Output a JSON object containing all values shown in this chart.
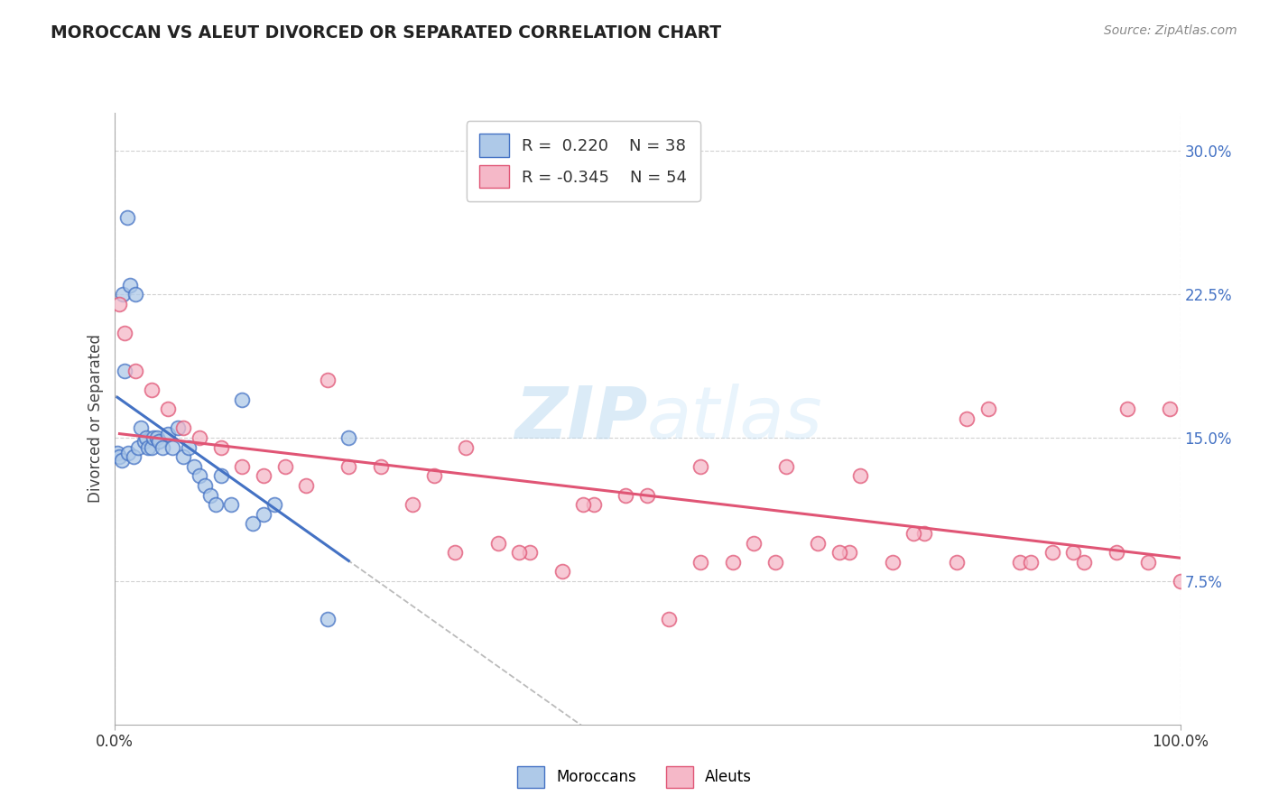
{
  "title": "MOROCCAN VS ALEUT DIVORCED OR SEPARATED CORRELATION CHART",
  "source": "Source: ZipAtlas.com",
  "ylabel": "Divorced or Separated",
  "xlim": [
    0,
    100
  ],
  "ylim": [
    0,
    32
  ],
  "ytick_vals": [
    7.5,
    15.0,
    22.5,
    30.0
  ],
  "ytick_labels": [
    "7.5%",
    "15.0%",
    "22.5%",
    "30.0%"
  ],
  "xtick_vals": [
    0,
    100
  ],
  "xtick_labels": [
    "0.0%",
    "100.0%"
  ],
  "moroccan_R": "0.220",
  "moroccan_N": "38",
  "aleut_R": "-0.345",
  "aleut_N": "54",
  "moroccan_face": "#aec9e8",
  "moroccan_edge": "#4472c4",
  "aleut_face": "#f5b8c8",
  "aleut_edge": "#e05575",
  "moroccan_line": "#4472c4",
  "aleut_line": "#e05575",
  "ref_line_color": "#bbbbbb",
  "background": "#ffffff",
  "watermark_zip": "ZIP",
  "watermark_atlas": "atlas",
  "moroccan_x": [
    0.3,
    0.5,
    0.7,
    0.8,
    1.0,
    1.2,
    1.3,
    1.5,
    1.8,
    2.0,
    2.2,
    2.5,
    2.8,
    3.0,
    3.2,
    3.5,
    3.7,
    4.0,
    4.2,
    4.5,
    5.0,
    5.5,
    6.0,
    6.5,
    7.0,
    7.5,
    8.0,
    8.5,
    9.0,
    9.5,
    10.0,
    11.0,
    12.0,
    13.0,
    14.0,
    15.0,
    20.0,
    22.0
  ],
  "moroccan_y": [
    14.2,
    14.0,
    13.8,
    22.5,
    18.5,
    26.5,
    14.2,
    23.0,
    14.0,
    22.5,
    14.5,
    15.5,
    14.8,
    15.0,
    14.5,
    14.5,
    15.0,
    15.0,
    14.8,
    14.5,
    15.2,
    14.5,
    15.5,
    14.0,
    14.5,
    13.5,
    13.0,
    12.5,
    12.0,
    11.5,
    13.0,
    11.5,
    17.0,
    10.5,
    11.0,
    11.5,
    5.5,
    15.0
  ],
  "aleut_x": [
    0.5,
    1.0,
    2.0,
    3.5,
    5.0,
    6.5,
    8.0,
    10.0,
    12.0,
    14.0,
    16.0,
    18.0,
    20.0,
    25.0,
    30.0,
    33.0,
    36.0,
    39.0,
    42.0,
    45.0,
    48.0,
    50.0,
    52.0,
    55.0,
    58.0,
    60.0,
    63.0,
    66.0,
    69.0,
    70.0,
    73.0,
    76.0,
    79.0,
    82.0,
    85.0,
    88.0,
    91.0,
    94.0,
    97.0,
    100.0,
    22.0,
    28.0,
    32.0,
    38.0,
    44.0,
    55.0,
    62.0,
    68.0,
    75.0,
    80.0,
    86.0,
    90.0,
    95.0,
    99.0
  ],
  "aleut_y": [
    22.0,
    20.5,
    18.5,
    17.5,
    16.5,
    15.5,
    15.0,
    14.5,
    13.5,
    13.0,
    13.5,
    12.5,
    18.0,
    13.5,
    13.0,
    14.5,
    9.5,
    9.0,
    8.0,
    11.5,
    12.0,
    12.0,
    5.5,
    13.5,
    8.5,
    9.5,
    13.5,
    9.5,
    9.0,
    13.0,
    8.5,
    10.0,
    8.5,
    16.5,
    8.5,
    9.0,
    8.5,
    9.0,
    8.5,
    7.5,
    13.5,
    11.5,
    9.0,
    9.0,
    11.5,
    8.5,
    8.5,
    9.0,
    10.0,
    16.0,
    8.5,
    9.0,
    16.5,
    16.5
  ]
}
